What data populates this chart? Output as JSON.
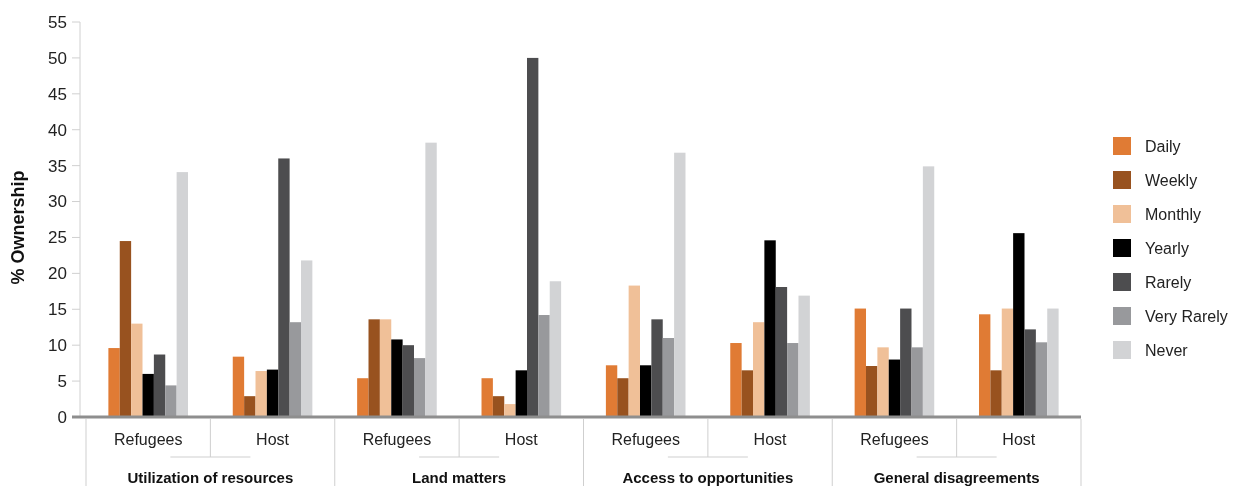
{
  "chart_data": {
    "type": "bar",
    "ylabel": "% Ownership",
    "categories": [
      "Refugees",
      "Host",
      "Refugees",
      "Host",
      "Refugees",
      "Host",
      "Refugees",
      "Host"
    ],
    "annotations": [
      "Utilization of resources",
      "Land matters",
      "Access to opportunities",
      "General disagreements"
    ],
    "series": [
      {
        "name": "Daily",
        "color": "#e07b34",
        "values": [
          9.6,
          8.4,
          5.4,
          5.4,
          7.2,
          10.3,
          15.1,
          14.3
        ]
      },
      {
        "name": "Weekly",
        "color": "#98521f",
        "values": [
          24.5,
          2.9,
          13.6,
          2.9,
          5.4,
          6.5,
          7.1,
          6.5
        ]
      },
      {
        "name": "Monthly",
        "color": "#f0c098",
        "values": [
          13.0,
          6.4,
          13.6,
          1.8,
          18.3,
          13.2,
          9.7,
          15.1
        ]
      },
      {
        "name": "Yearly",
        "color": "#000000",
        "values": [
          6.0,
          6.6,
          10.8,
          6.5,
          7.2,
          24.6,
          8.0,
          25.6
        ]
      },
      {
        "name": "Rarely",
        "color": "#4d4d4f",
        "values": [
          8.7,
          36.0,
          10.0,
          50.0,
          13.6,
          18.1,
          15.1,
          12.2
        ]
      },
      {
        "name": "Very Rarely",
        "color": "#98999c",
        "values": [
          4.4,
          13.2,
          8.2,
          14.2,
          11.0,
          10.3,
          9.7,
          10.4
        ]
      },
      {
        "name": "Never",
        "color": "#d2d3d5",
        "values": [
          34.1,
          21.8,
          38.2,
          18.9,
          36.8,
          16.9,
          34.9,
          15.1
        ]
      }
    ],
    "ylim": [
      0,
      55
    ],
    "yticks": [
      0,
      5,
      10,
      15,
      20,
      25,
      30,
      35,
      40,
      45,
      50,
      55
    ],
    "grid": false,
    "legend": "right"
  }
}
